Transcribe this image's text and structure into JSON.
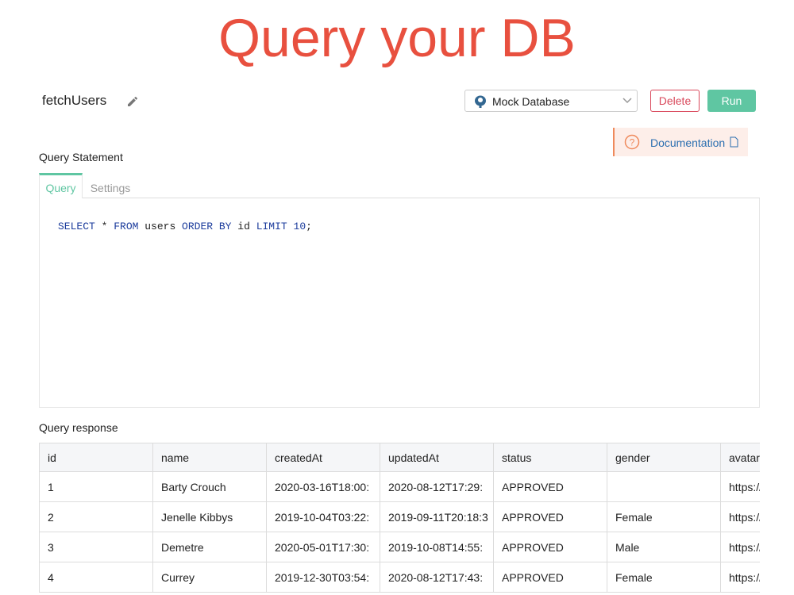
{
  "header": {
    "title": "Query your DB"
  },
  "query": {
    "name": "fetchUsers",
    "datasource": "Mock Database",
    "delete_button": "Delete",
    "run_button": "Run",
    "documentation_link": "Documentation",
    "statement_label": "Query Statement",
    "tabs": [
      "Query",
      "Settings"
    ],
    "statement_tokens": [
      {
        "text": "SELECT",
        "color": "#1c3c9c"
      },
      {
        "text": " * ",
        "color": "#222222"
      },
      {
        "text": "FROM",
        "color": "#1c3c9c"
      },
      {
        "text": " users ",
        "color": "#222222"
      },
      {
        "text": "ORDER BY",
        "color": "#1c3c9c"
      },
      {
        "text": " id ",
        "color": "#222222"
      },
      {
        "text": "LIMIT",
        "color": "#1c3c9c"
      },
      {
        "text": " ",
        "color": "#222222"
      },
      {
        "text": "10",
        "color": "#1c3c9c"
      },
      {
        "text": ";",
        "color": "#222222"
      }
    ]
  },
  "response": {
    "label": "Query response",
    "table": {
      "columns": [
        "id",
        "name",
        "createdAt",
        "updatedAt",
        "status",
        "gender",
        "avatar"
      ],
      "rows": [
        [
          "1",
          "Barty Crouch",
          "2020-03-16T18:00:",
          "2020-08-12T17:29:",
          "APPROVED",
          null,
          "https://"
        ],
        [
          "2",
          "Jenelle Kibbys",
          "2019-10-04T03:22:",
          "2019-09-11T20:18:3",
          "APPROVED",
          "Female",
          "https://"
        ],
        [
          "3",
          "Demetre",
          "2020-05-01T17:30:",
          "2019-10-08T14:55:",
          "APPROVED",
          "Male",
          "https://"
        ],
        [
          "4",
          "Currey",
          "2019-12-30T03:54:",
          "2020-08-12T17:43:",
          "APPROVED",
          "Female",
          "https://"
        ]
      ]
    }
  }
}
